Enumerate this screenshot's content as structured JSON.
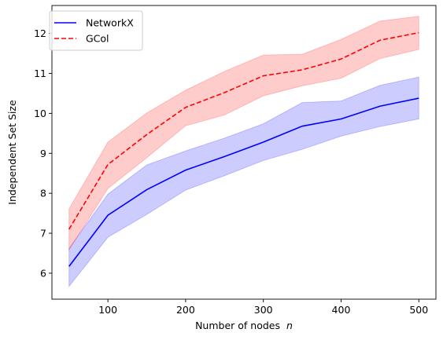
{
  "chart_data": {
    "type": "line",
    "xlabel": "Number of nodes",
    "xlabel_var": "n",
    "ylabel": "Independent Set Size",
    "xlim": [
      28,
      522
    ],
    "ylim": [
      5.35,
      12.7
    ],
    "xticks": [
      100,
      200,
      300,
      400,
      500
    ],
    "yticks": [
      6,
      7,
      8,
      9,
      10,
      11,
      12
    ],
    "grid": false,
    "legend_position": "top-left",
    "x": [
      50,
      100,
      150,
      200,
      250,
      300,
      350,
      400,
      450,
      500
    ],
    "series": [
      {
        "name": "NetworkX",
        "color": "#0000ff",
        "linestyle": "solid",
        "values": [
          6.17,
          7.45,
          8.09,
          8.58,
          8.92,
          9.28,
          9.68,
          9.86,
          10.18,
          10.38
        ],
        "band_low": [
          5.67,
          6.9,
          7.47,
          8.08,
          8.44,
          8.82,
          9.1,
          9.43,
          9.67,
          9.86
        ],
        "band_high": [
          6.62,
          7.98,
          8.71,
          9.06,
          9.38,
          9.74,
          10.27,
          10.31,
          10.7,
          10.91
        ]
      },
      {
        "name": "GCol",
        "color": "#ff0000",
        "linestyle": "dashed",
        "values": [
          7.1,
          8.72,
          9.47,
          10.15,
          10.52,
          10.94,
          11.09,
          11.36,
          11.83,
          12.02
        ],
        "band_low": [
          6.58,
          8.12,
          8.89,
          9.69,
          9.96,
          10.44,
          10.69,
          10.88,
          11.37,
          11.6
        ],
        "band_high": [
          7.61,
          9.28,
          10.01,
          10.58,
          11.05,
          11.46,
          11.48,
          11.85,
          12.31,
          12.43
        ]
      }
    ]
  }
}
